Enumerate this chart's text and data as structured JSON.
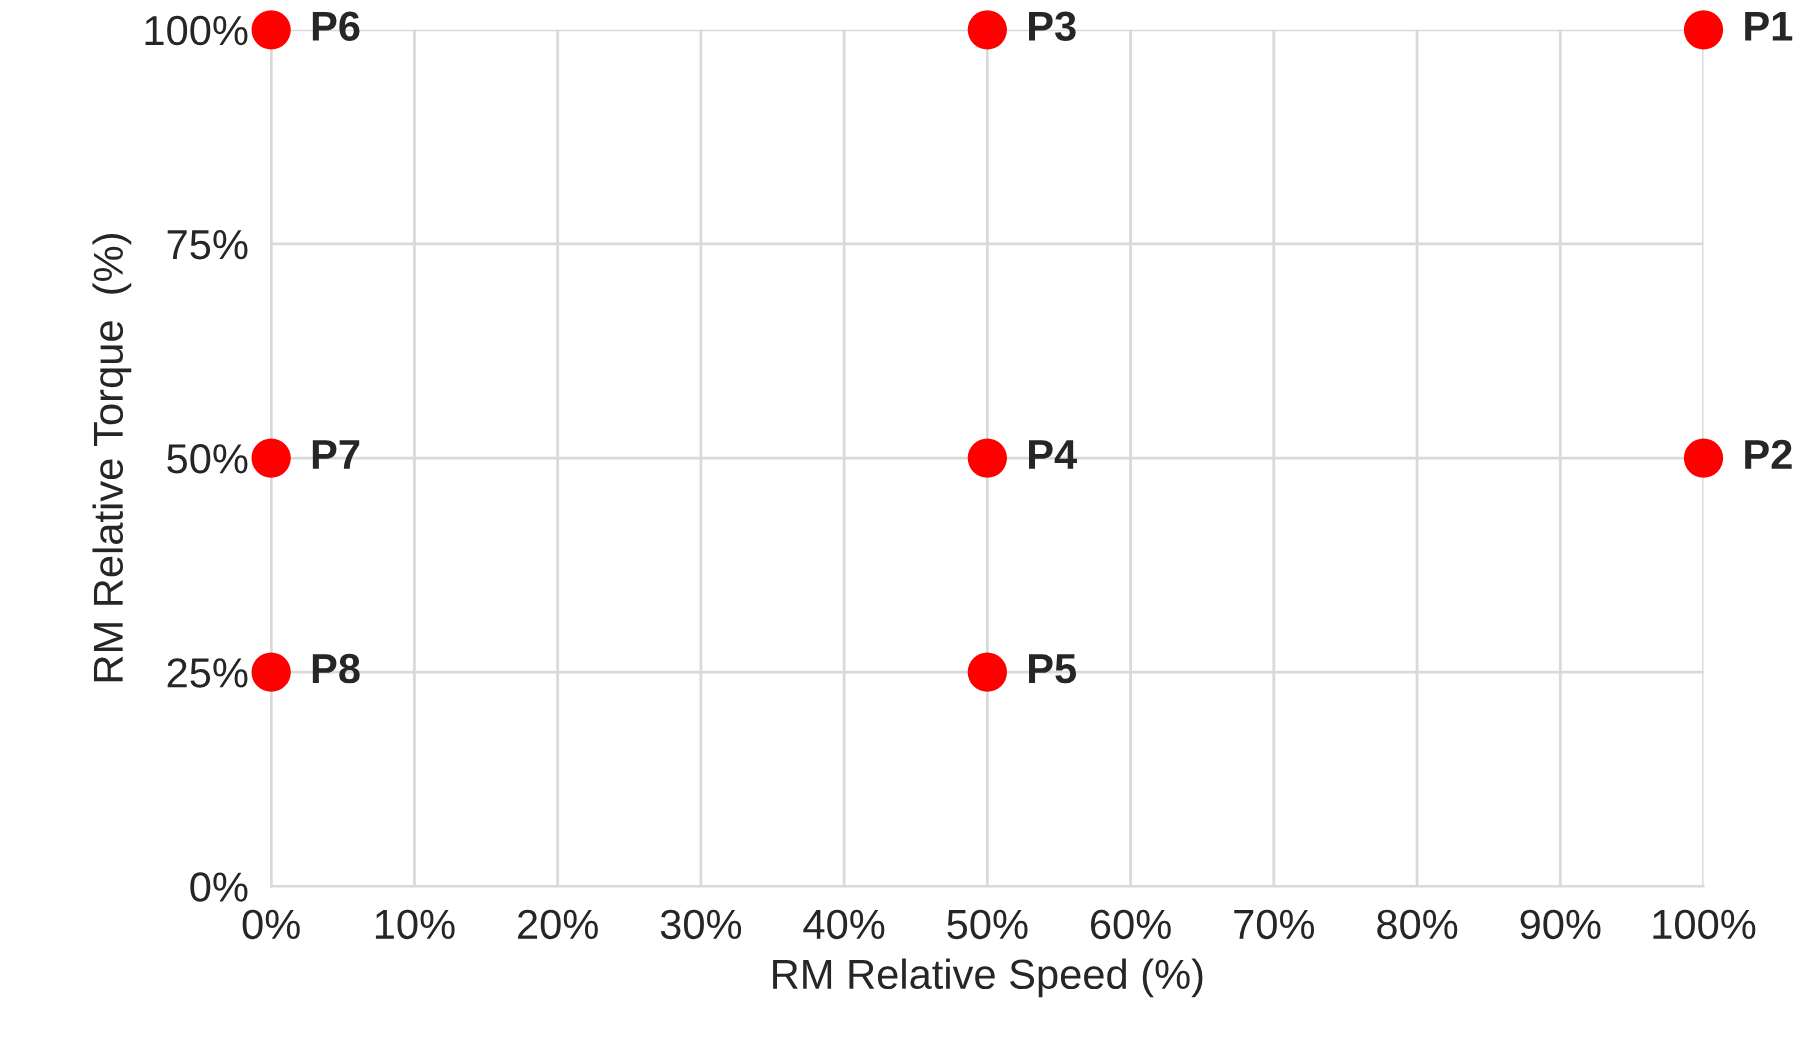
{
  "chart_data": {
    "type": "scatter",
    "xlabel": "RM Relative Speed (%)",
    "ylabel": "RM Relative Torque  (%)",
    "series": [
      {
        "color": "#ff0000",
        "x": [
          100,
          100,
          50,
          50,
          50,
          0,
          0,
          0
        ],
        "values": [
          100,
          50,
          100,
          50,
          25,
          100,
          50,
          25
        ]
      }
    ],
    "marker": "circle",
    "grid": true,
    "legend": false,
    "xlim": [
      0,
      100
    ],
    "ylim": [
      0,
      100
    ],
    "xticks": [
      {
        "value": 0,
        "label": "0%"
      },
      {
        "value": 10,
        "label": "10%"
      },
      {
        "value": 20,
        "label": "20%"
      },
      {
        "value": 30,
        "label": "30%"
      },
      {
        "value": 40,
        "label": "40%"
      },
      {
        "value": 50,
        "label": "50%"
      },
      {
        "value": 60,
        "label": "60%"
      },
      {
        "value": 70,
        "label": "70%"
      },
      {
        "value": 80,
        "label": "80%"
      },
      {
        "value": 90,
        "label": "90%"
      },
      {
        "value": 100,
        "label": "100%"
      }
    ],
    "yticks": [
      {
        "value": 0,
        "label": "0%"
      },
      {
        "value": 25,
        "label": "25%"
      },
      {
        "value": 50,
        "label": "50%"
      },
      {
        "value": 75,
        "label": "75%"
      },
      {
        "value": 100,
        "label": "100%"
      }
    ],
    "annotations": [
      {
        "text": "P1",
        "x": 100,
        "y": 100
      },
      {
        "text": "P2",
        "x": 100,
        "y": 50
      },
      {
        "text": "P3",
        "x": 50,
        "y": 100
      },
      {
        "text": "P4",
        "x": 50,
        "y": 50
      },
      {
        "text": "P5",
        "x": 50,
        "y": 25
      },
      {
        "text": "P6",
        "x": 0,
        "y": 100
      },
      {
        "text": "P7",
        "x": 0,
        "y": 50
      },
      {
        "text": "P8",
        "x": 0,
        "y": 25
      }
    ]
  }
}
